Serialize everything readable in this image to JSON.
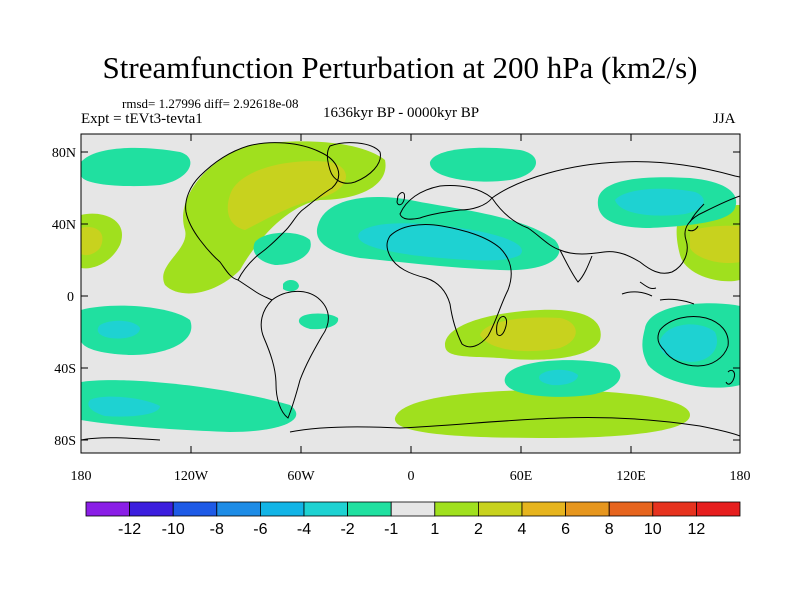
{
  "header": {
    "title": "Streamfunction Perturbation at 200 hPa (km2/s)",
    "stats": "rmsd= 1.27996 diff= 2.92618e-08",
    "expt": "Expt = tEVt3-tevta1",
    "period": "1636kyr BP - 0000kyr BP",
    "season": "JJA"
  },
  "axes": {
    "lat_labels": [
      "80N",
      "40N",
      "0",
      "40S",
      "80S"
    ],
    "lon_labels": [
      "180",
      "120W",
      "60W",
      "0",
      "60E",
      "120E",
      "180"
    ]
  },
  "colorbar": {
    "labels": [
      "-12",
      "-10",
      "-8",
      "-6",
      "-4",
      "-2",
      "-1",
      "1",
      "2",
      "4",
      "6",
      "8",
      "10",
      "12"
    ],
    "colors": [
      "#8a1ee6",
      "#3c1ede",
      "#1e5ae6",
      "#1e8ce6",
      "#12b4e6",
      "#1ed2d2",
      "#20e0a0",
      "#e6e6e6",
      "#a0e01e",
      "#c8d21e",
      "#e6b41e",
      "#e6961e",
      "#e6641e",
      "#e6321e",
      "#e61e1e"
    ]
  },
  "map_colors": {
    "background": "#e6e6e6",
    "level_neg_small": "#20e0a0",
    "level_neg_mid": "#1ed2d2",
    "level_pos_small": "#a0e01e",
    "level_pos_mid": "#c8d21e"
  }
}
